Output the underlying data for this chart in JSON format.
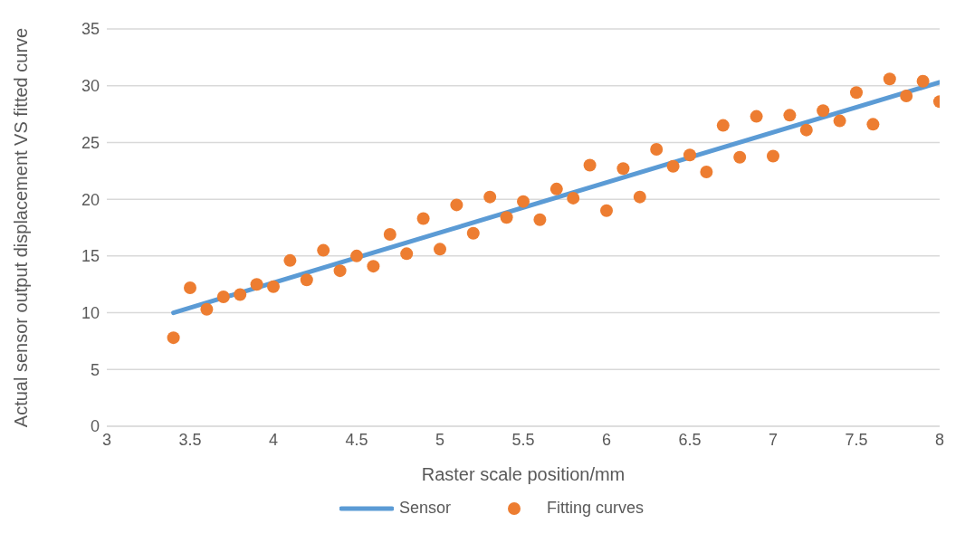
{
  "chart_data": {
    "type": "scatter",
    "xlabel": "Raster scale position/mm",
    "ylabel": "Actual sensor output displacement VS fitted curve",
    "xlim": [
      3,
      8
    ],
    "xticks": [
      3,
      3.5,
      4,
      4.5,
      5,
      5.5,
      6,
      6.5,
      7,
      7.5,
      8
    ],
    "ylim": [
      0,
      35
    ],
    "yticks": [
      0,
      5,
      10,
      15,
      20,
      25,
      30,
      35
    ],
    "grid": "y",
    "legend": "bottom",
    "series": [
      {
        "name": "Sensor",
        "type": "line",
        "color": "#5b9bd5",
        "marker": "none",
        "line_style": "solid",
        "x": [
          3.4,
          8
        ],
        "values": [
          10.0,
          30.3
        ]
      },
      {
        "name": "Fitting curves",
        "color": "#ed7d31",
        "marker": "circle",
        "x": [
          3.4,
          3.5,
          3.6,
          3.7,
          3.8,
          3.9,
          4.0,
          4.1,
          4.2,
          4.3,
          4.4,
          4.5,
          4.6,
          4.7,
          4.8,
          4.9,
          5.0,
          5.1,
          5.2,
          5.3,
          5.4,
          5.5,
          5.6,
          5.7,
          5.8,
          5.9,
          6.0,
          6.1,
          6.2,
          6.3,
          6.4,
          6.5,
          6.6,
          6.7,
          6.8,
          6.9,
          7.0,
          7.1,
          7.2,
          7.3,
          7.4,
          7.5,
          7.6,
          7.7,
          7.8,
          7.9,
          8.0
        ],
        "values": [
          7.8,
          12.2,
          10.3,
          11.4,
          11.6,
          12.5,
          12.3,
          14.6,
          12.9,
          15.5,
          13.7,
          15.0,
          14.1,
          16.9,
          15.2,
          18.3,
          15.6,
          19.5,
          17.0,
          20.2,
          18.4,
          19.8,
          18.2,
          20.9,
          20.1,
          23.0,
          19.0,
          22.7,
          20.2,
          24.4,
          22.9,
          23.9,
          22.4,
          26.5,
          23.7,
          27.3,
          23.8,
          27.4,
          26.1,
          27.8,
          26.9,
          29.4,
          26.6,
          30.6,
          29.1,
          30.4,
          28.6
        ]
      }
    ]
  }
}
